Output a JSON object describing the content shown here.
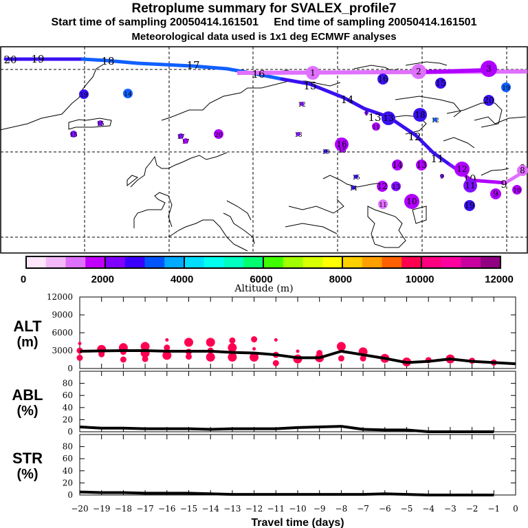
{
  "header": {
    "title": "Retroplume summary for SVALEX_profile7",
    "sampling": "Start time of sampling 20050414.161501     End time of sampling 20050414.161501",
    "met": "Meteorological data used is 1x1 deg ECMWF analyses"
  },
  "chart_data": [
    {
      "type": "map",
      "name": "trajectory-map",
      "description": "Retroplume cluster centroid trajectories over Europe/Arctic, labeled by days back; markers colored by altitude",
      "trajectories": [
        {
          "name": "main-plume",
          "labels": [
            "20",
            "19",
            "18",
            "17",
            "16",
            "15",
            "14",
            "13",
            "12",
            "11",
            "10",
            "9",
            "8"
          ],
          "colors": [
            "#3a10f0",
            "#1060ff",
            "#8010ff",
            "#b000ff",
            "#e070ff"
          ]
        },
        {
          "name": "upper-plume",
          "labels": [
            "1",
            "2",
            "3"
          ],
          "color": "#e070ff"
        }
      ],
      "cluster_labels": [
        "19",
        "14",
        "15",
        "15",
        "16",
        "17",
        "20",
        "12",
        "13",
        "19",
        "16",
        "15",
        "16",
        "15",
        "19",
        "20",
        "13",
        "18",
        "12",
        "11",
        "14",
        "13",
        "11",
        "12",
        "10",
        "15",
        "14",
        "12",
        "13",
        "10",
        "11",
        "9",
        "9",
        "10",
        "19",
        "2",
        "3",
        "1"
      ]
    },
    {
      "type": "colorbar",
      "label": "Altitude (m)",
      "ticks": [
        "0",
        "2000",
        "4000",
        "6000",
        "8000",
        "10000",
        "12000"
      ],
      "range": [
        0,
        12000
      ],
      "colors": [
        "#ffe6fa",
        "#f3b8f8",
        "#df70fb",
        "#c000ff",
        "#8000ff",
        "#3a00ff",
        "#0055ff",
        "#00aaff",
        "#00ddff",
        "#00ffee",
        "#00ffc0",
        "#00ff70",
        "#40ff00",
        "#a0ff00",
        "#d8ff00",
        "#ffff00",
        "#ffd000",
        "#ffa000",
        "#ff6000",
        "#ff0050",
        "#ff0080",
        "#ff00a0",
        "#c800a0",
        "#900080"
      ]
    },
    {
      "type": "line",
      "name": "ALT",
      "ylabel_line1": "ALT",
      "ylabel_line2": "(m)",
      "ylim": [
        0,
        12000
      ],
      "yticks": [
        "0",
        "3000",
        "6000",
        "9000",
        "12000"
      ],
      "x": [
        -20,
        -19,
        -18,
        -17,
        -16,
        -15,
        -14,
        -13,
        -12,
        -11,
        -10,
        -9,
        -8,
        -7,
        -6,
        -5,
        -4,
        -3,
        -2,
        -1,
        0
      ],
      "values": [
        2900,
        2950,
        3000,
        3000,
        2900,
        2900,
        2900,
        2700,
        2600,
        2300,
        1800,
        1800,
        2900,
        2300,
        1700,
        1000,
        1200,
        1600,
        1200,
        1000,
        800
      ],
      "scatter_color": "#ff0050",
      "scatter": [
        [
          -20,
          4200,
          1
        ],
        [
          -20,
          3000,
          2
        ],
        [
          -20,
          1800,
          2
        ],
        [
          -19,
          3200,
          3
        ],
        [
          -19,
          2400,
          2
        ],
        [
          -18,
          3500,
          3
        ],
        [
          -18,
          2800,
          2
        ],
        [
          -18,
          1500,
          2
        ],
        [
          -17,
          3700,
          3
        ],
        [
          -17,
          2600,
          3
        ],
        [
          -17,
          1600,
          2
        ],
        [
          -16,
          4800,
          1
        ],
        [
          -16,
          3500,
          2
        ],
        [
          -16,
          2200,
          3
        ],
        [
          -15,
          4400,
          3
        ],
        [
          -15,
          2800,
          2
        ],
        [
          -15,
          2000,
          2
        ],
        [
          -14,
          4400,
          3
        ],
        [
          -14,
          3000,
          2
        ],
        [
          -14,
          1900,
          3
        ],
        [
          -13,
          4700,
          2
        ],
        [
          -13,
          3500,
          3
        ],
        [
          -13,
          1900,
          3
        ],
        [
          -12,
          4900,
          2
        ],
        [
          -12,
          3300,
          1
        ],
        [
          -12,
          1900,
          3
        ],
        [
          -11,
          4800,
          1
        ],
        [
          -11,
          2300,
          2
        ],
        [
          -11,
          900,
          2
        ],
        [
          -10,
          2900,
          1
        ],
        [
          -10,
          1600,
          3
        ],
        [
          -9,
          2600,
          2
        ],
        [
          -9,
          1800,
          3
        ],
        [
          -8,
          3700,
          3
        ],
        [
          -8,
          1700,
          2
        ],
        [
          -7,
          2800,
          3
        ],
        [
          -7,
          1700,
          2
        ],
        [
          -6,
          1700,
          3
        ],
        [
          -5,
          1100,
          3
        ],
        [
          -4,
          1400,
          2
        ],
        [
          -3,
          1600,
          3
        ],
        [
          -2,
          1300,
          2
        ],
        [
          -1,
          1000,
          2
        ]
      ]
    },
    {
      "type": "line",
      "name": "ABL",
      "ylabel_line1": "ABL",
      "ylabel_line2": "(%)",
      "ylim": [
        0,
        100
      ],
      "yticks": [
        "0",
        "20",
        "40",
        "60",
        "80"
      ],
      "x": [
        -20,
        -19,
        -18,
        -17,
        -16,
        -15,
        -14,
        -13,
        -12,
        -11,
        -10,
        -9,
        -8,
        -7,
        -6,
        -5,
        -4,
        -3,
        -2,
        -1
      ],
      "values": [
        8,
        6,
        6,
        5,
        5,
        5,
        4,
        5,
        5,
        5,
        7,
        8,
        9,
        4,
        3,
        3,
        0,
        0,
        0,
        0
      ]
    },
    {
      "type": "line",
      "name": "STR",
      "ylabel_line1": "STR",
      "ylabel_line2": "(%)",
      "ylim": [
        0,
        100
      ],
      "yticks": [
        "0",
        "20",
        "40",
        "60",
        "80"
      ],
      "x": [
        -20,
        -19,
        -18,
        -17,
        -16,
        -15,
        -14,
        -13,
        -12,
        -11,
        -10,
        -9,
        -8,
        -7,
        -6,
        -5,
        -4,
        -3,
        -2,
        -1
      ],
      "values": [
        5,
        4,
        4,
        3,
        3,
        3,
        2,
        1,
        1,
        1,
        1,
        1,
        1,
        1,
        2,
        1,
        0,
        0,
        0,
        0
      ],
      "xlabel": "Travel time (days)",
      "xticks": [
        "-20",
        "-19",
        "-18",
        "-17",
        "-16",
        "-15",
        "-14",
        "-13",
        "-12",
        "-11",
        "-10",
        "-9",
        "-8",
        "-7",
        "-6",
        "-5",
        "-4",
        "-3",
        "-2",
        "-1",
        "0"
      ]
    }
  ]
}
